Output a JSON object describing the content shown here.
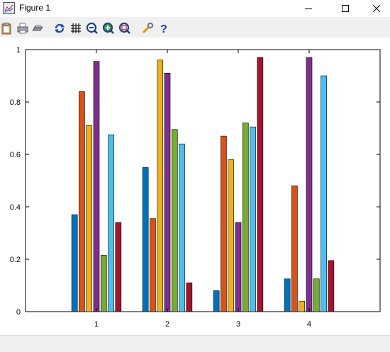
{
  "window": {
    "title": "Figure 1"
  },
  "toolbar": {
    "items": [
      "paste-icon",
      "print-icon",
      "open-icon",
      "rotate-icon",
      "grid-icon",
      "zoom-out-icon",
      "zoom-in-icon",
      "zoom-fit-icon",
      "settings-icon",
      "help-icon"
    ]
  },
  "colors": [
    "#0072bd",
    "#d95319",
    "#edb120",
    "#7e2f8e",
    "#77ac30",
    "#4dbeee",
    "#a2142f"
  ],
  "chart_data": {
    "type": "bar",
    "title": "",
    "xlabel": "",
    "ylabel": "",
    "categories": [
      "1",
      "2",
      "3",
      "4"
    ],
    "ylim": [
      0,
      1
    ],
    "yticks": [
      "0",
      "0.2",
      "0.4",
      "0.6",
      "0.8",
      "1"
    ],
    "series": [
      {
        "values": [
          0.37,
          0.55,
          0.08,
          0.125
        ]
      },
      {
        "values": [
          0.84,
          0.355,
          0.67,
          0.48
        ]
      },
      {
        "values": [
          0.71,
          0.96,
          0.58,
          0.04
        ]
      },
      {
        "values": [
          0.955,
          0.91,
          0.34,
          0.97
        ]
      },
      {
        "values": [
          0.215,
          0.695,
          0.72,
          0.125
        ]
      },
      {
        "values": [
          0.675,
          0.64,
          0.705,
          0.9
        ]
      },
      {
        "values": [
          0.34,
          0.11,
          0.97,
          0.195
        ]
      }
    ],
    "grid": false,
    "legend": "none"
  }
}
